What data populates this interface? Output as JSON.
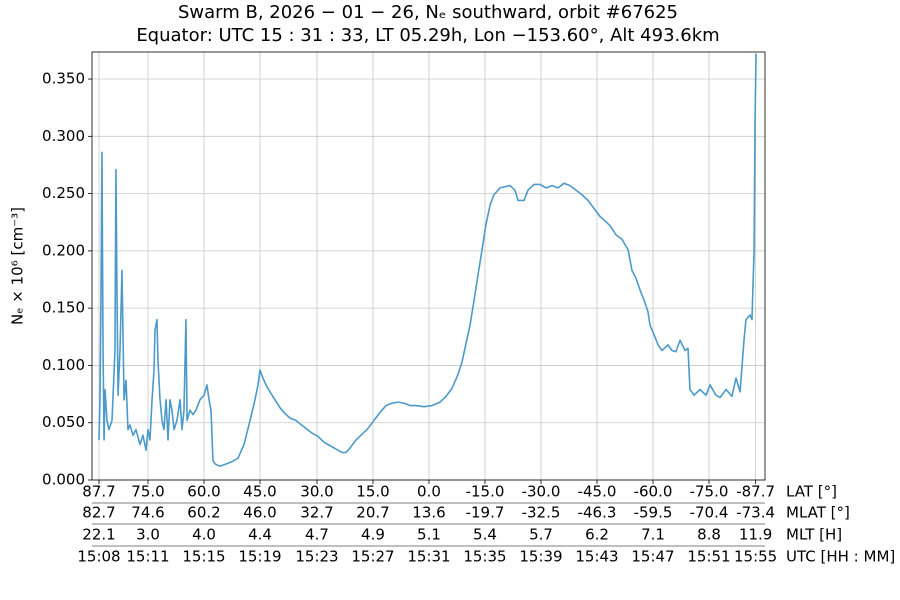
{
  "chart_data": {
    "type": "line",
    "title": "Swarm B,  2026 − 01 − 26,  Nₑ southward,  orbit #67625",
    "subtitle": "Equator:  UTC 15 : 31 : 33,  LT 05.29h,  Lon  −153.60°,  Alt 493.6km",
    "y_label": "Nₑ × 10⁶ [cm⁻³]",
    "x_label": "UTC [HH : MM]",
    "grid": true,
    "xlim": [
      7.9,
      55.97
    ],
    "ylim": [
      0,
      0.3736
    ],
    "xticks": [
      {
        "value": 8.4,
        "label": "15:08"
      },
      {
        "value": 11.9,
        "label": "15:11"
      },
      {
        "value": 15.9,
        "label": "15:15"
      },
      {
        "value": 19.9,
        "label": "15:19"
      },
      {
        "value": 23.97,
        "label": "15:23"
      },
      {
        "value": 27.97,
        "label": "15:27"
      },
      {
        "value": 31.97,
        "label": "15:31"
      },
      {
        "value": 35.97,
        "label": "15:35"
      },
      {
        "value": 39.97,
        "label": "15:39"
      },
      {
        "value": 43.97,
        "label": "15:43"
      },
      {
        "value": 47.97,
        "label": "15:47"
      },
      {
        "value": 51.97,
        "label": "15:51"
      },
      {
        "value": 55.3,
        "label": "15:55"
      }
    ],
    "x_tick_rows": [
      {
        "name": "LAT [°]",
        "labels": [
          "87.7",
          "75.0",
          "60.0",
          "45.0",
          "30.0",
          "15.0",
          "0.0",
          "-15.0",
          "-30.0",
          "-45.0",
          "-60.0",
          "-75.0",
          "-87.7"
        ]
      },
      {
        "name": "MLAT [°]",
        "labels": [
          "82.7",
          "74.6",
          "60.2",
          "46.0",
          "32.7",
          "20.7",
          "13.6",
          "-19.7",
          "-32.5",
          "-46.3",
          "-59.5",
          "-70.4",
          "-73.4"
        ]
      },
      {
        "name": "MLT [H]",
        "labels": [
          "22.1",
          "3.0",
          "4.0",
          "4.4",
          "4.7",
          "4.9",
          "5.1",
          "5.4",
          "5.7",
          "6.2",
          "7.1",
          "8.8",
          "11.9"
        ]
      }
    ],
    "yticks": [
      {
        "value": 0,
        "label": "0.000"
      },
      {
        "value": 0.05,
        "label": "0.050"
      },
      {
        "value": 0.1,
        "label": "0.100"
      },
      {
        "value": 0.15,
        "label": "0.150"
      },
      {
        "value": 0.2,
        "label": "0.200"
      },
      {
        "value": 0.25,
        "label": "0.250"
      },
      {
        "value": 0.3,
        "label": "0.300"
      },
      {
        "value": 0.35,
        "label": "0.350"
      }
    ],
    "x": [
      8.4,
      8.47,
      8.54,
      8.61,
      8.69,
      8.76,
      8.83,
      8.97,
      9.11,
      9.33,
      9.54,
      9.61,
      9.69,
      9.76,
      9.9,
      10.04,
      10.19,
      10.33,
      10.47,
      10.61,
      10.83,
      11.04,
      11.33,
      11.54,
      11.76,
      11.9,
      12.04,
      12.19,
      12.33,
      12.4,
      12.54,
      12.61,
      12.76,
      12.9,
      13.04,
      13.19,
      13.33,
      13.47,
      13.61,
      13.76,
      13.97,
      14.19,
      14.33,
      14.47,
      14.61,
      14.69,
      14.9,
      15.11,
      15.33,
      15.61,
      15.9,
      16.11,
      16.26,
      16.4,
      16.54,
      16.69,
      17.04,
      17.47,
      17.9,
      18.33,
      18.76,
      19.19,
      19.54,
      19.76,
      19.9,
      20.11,
      20.33,
      20.61,
      20.97,
      21.33,
      21.69,
      22.04,
      22.47,
      22.76,
      23.19,
      23.61,
      24.04,
      24.47,
      24.9,
      25.33,
      25.76,
      26.04,
      26.33,
      26.76,
      27.19,
      27.61,
      28.04,
      28.47,
      28.9,
      29.33,
      29.76,
      30.19,
      30.61,
      31.04,
      31.61,
      32.19,
      32.76,
      33.19,
      33.61,
      34.04,
      34.33,
      34.61,
      34.9,
      35.19,
      35.47,
      35.76,
      36.04,
      36.33,
      36.61,
      37.04,
      37.76,
      38.11,
      38.33,
      38.76,
      39.04,
      39.47,
      39.9,
      40.33,
      40.76,
      41.19,
      41.61,
      42.04,
      42.47,
      42.9,
      43.33,
      43.76,
      44.19,
      44.47,
      44.9,
      45.33,
      45.76,
      46.19,
      46.47,
      46.76,
      47.04,
      47.33,
      47.61,
      47.76,
      48.04,
      48.33,
      48.61,
      49.04,
      49.33,
      49.61,
      49.9,
      50.26,
      50.47,
      50.61,
      50.9,
      51.33,
      51.76,
      52.04,
      52.47,
      52.76,
      53.19,
      53.61,
      53.9,
      54.19,
      54.47,
      54.61,
      54.9,
      55.04,
      55.19,
      55.26,
      55.33
    ],
    "series": [
      {
        "color": "#4c9ac9",
        "values": [
          0.035,
          0.07,
          0.157,
          0.286,
          0.113,
          0.035,
          0.079,
          0.052,
          0.044,
          0.052,
          0.113,
          0.271,
          0.157,
          0.074,
          0.113,
          0.183,
          0.07,
          0.087,
          0.044,
          0.048,
          0.039,
          0.044,
          0.031,
          0.039,
          0.026,
          0.044,
          0.035,
          0.07,
          0.096,
          0.131,
          0.14,
          0.105,
          0.07,
          0.052,
          0.044,
          0.07,
          0.035,
          0.07,
          0.061,
          0.044,
          0.052,
          0.07,
          0.044,
          0.061,
          0.14,
          0.052,
          0.061,
          0.057,
          0.061,
          0.07,
          0.074,
          0.083,
          0.07,
          0.061,
          0.017,
          0.014,
          0.012,
          0.014,
          0.016,
          0.019,
          0.031,
          0.052,
          0.07,
          0.083,
          0.096,
          0.089,
          0.083,
          0.077,
          0.07,
          0.063,
          0.058,
          0.054,
          0.052,
          0.049,
          0.045,
          0.041,
          0.038,
          0.033,
          0.03,
          0.027,
          0.024,
          0.024,
          0.028,
          0.035,
          0.04,
          0.045,
          0.052,
          0.059,
          0.065,
          0.067,
          0.068,
          0.067,
          0.065,
          0.065,
          0.064,
          0.065,
          0.068,
          0.073,
          0.08,
          0.092,
          0.103,
          0.119,
          0.135,
          0.157,
          0.179,
          0.201,
          0.223,
          0.24,
          0.249,
          0.255,
          0.257,
          0.253,
          0.244,
          0.244,
          0.253,
          0.258,
          0.258,
          0.255,
          0.257,
          0.255,
          0.259,
          0.257,
          0.253,
          0.249,
          0.244,
          0.237,
          0.23,
          0.227,
          0.222,
          0.214,
          0.21,
          0.201,
          0.183,
          0.176,
          0.166,
          0.157,
          0.147,
          0.135,
          0.127,
          0.118,
          0.113,
          0.118,
          0.113,
          0.112,
          0.122,
          0.113,
          0.115,
          0.079,
          0.074,
          0.079,
          0.074,
          0.083,
          0.074,
          0.072,
          0.079,
          0.073,
          0.089,
          0.077,
          0.122,
          0.14,
          0.144,
          0.14,
          0.201,
          0.314,
          0.372
        ]
      }
    ]
  }
}
